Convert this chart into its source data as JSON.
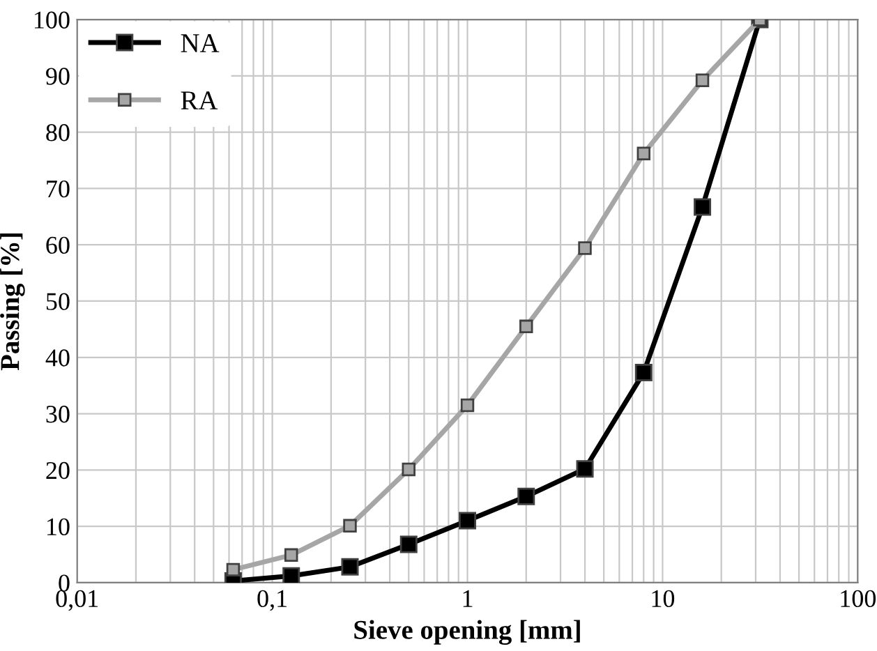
{
  "chart_data": {
    "type": "line",
    "xlabel": "Sieve opening [mm]",
    "ylabel": "Passing [%]",
    "x": [
      0.063,
      0.125,
      0.25,
      0.5,
      1,
      2,
      4,
      8,
      16,
      31.5
    ],
    "series": [
      {
        "name": "NA",
        "color": "#000000",
        "values": [
          0.3,
          1.2,
          2.8,
          6.8,
          11,
          15.3,
          20.2,
          37.3,
          66.7,
          100
        ]
      },
      {
        "name": "RA",
        "color": "#a6a6a6",
        "values": [
          2.3,
          4.9,
          10.1,
          20.1,
          31.5,
          45.5,
          59.4,
          76.2,
          89.2,
          100
        ]
      }
    ],
    "log": "x",
    "xlim": [
      0.01,
      100
    ],
    "xticks": [
      {
        "value": 0.01,
        "label": "0,01"
      },
      {
        "value": 0.1,
        "label": "0,1"
      },
      1,
      10,
      100
    ],
    "ylim": [
      0,
      100
    ],
    "yticks": [
      0,
      10,
      20,
      30,
      40,
      50,
      60,
      70,
      80,
      90,
      100
    ],
    "grid": true,
    "legend": "top left",
    "marker": "square",
    "line_style": "solid"
  }
}
